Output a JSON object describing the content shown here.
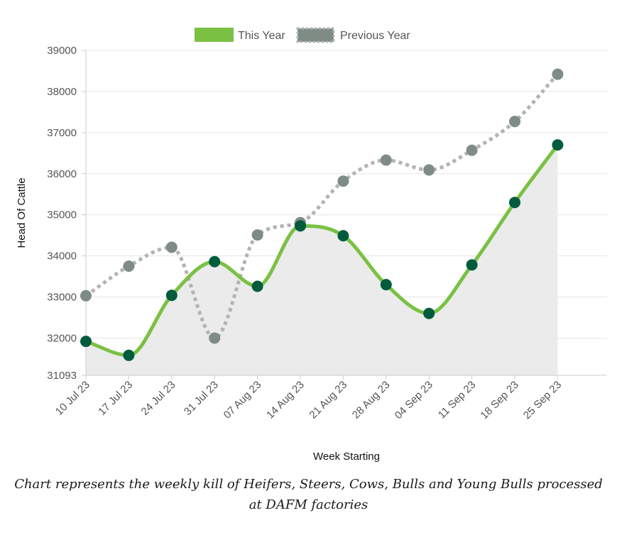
{
  "chart_data": {
    "type": "line",
    "title": "",
    "xlabel": "Week Starting",
    "ylabel": "Head Of Cattle",
    "categories": [
      "10 Jul 23",
      "17 Jul 23",
      "24 Jul 23",
      "31 Jul 23",
      "07 Aug 23",
      "14 Aug 23",
      "21 Aug 23",
      "28 Aug 23",
      "04 Sep 23",
      "11 Sep 23",
      "18 Sep 23",
      "25 Sep 23"
    ],
    "y_ticks": [
      "39000",
      "38000",
      "37000",
      "36000",
      "35000",
      "34000",
      "33000",
      "32000",
      "31093"
    ],
    "ylim": [
      31093,
      39000
    ],
    "grid": true,
    "legend_position": "top",
    "series": [
      {
        "name": "This Year",
        "values": [
          31920,
          31580,
          33040,
          33860,
          33260,
          34730,
          34490,
          33300,
          32600,
          33780,
          35300,
          36700
        ],
        "line_color": "#7ac143",
        "point_color": "#005c3c",
        "line_style": "solid",
        "area_fill": "#ebebeb"
      },
      {
        "name": "Previous Year",
        "values": [
          33030,
          33750,
          34210,
          32000,
          34510,
          34810,
          35820,
          36330,
          36090,
          36570,
          37270,
          38420
        ],
        "line_color": "#b3b3b3",
        "point_color": "#7f8c85",
        "line_style": "dotted"
      }
    ]
  },
  "caption": "Chart represents the weekly kill of Heifers, Steers, Cows, Bulls and Young Bulls processed at DAFM factories"
}
